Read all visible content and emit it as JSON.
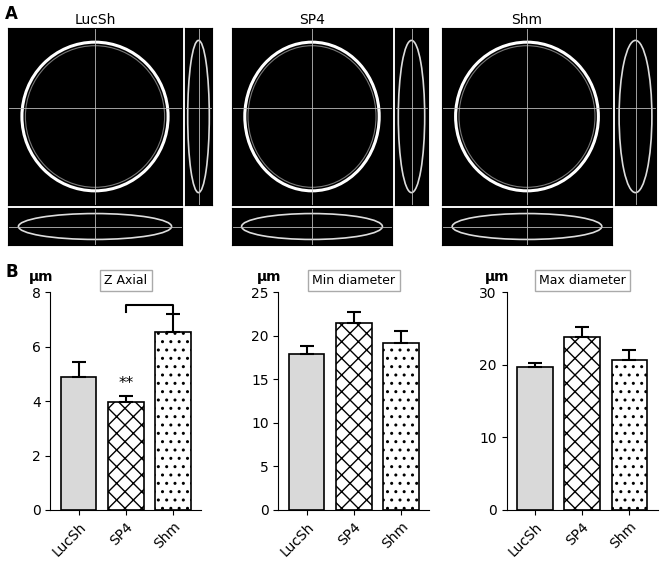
{
  "panel_labels": [
    "A",
    "B"
  ],
  "images": {
    "labels": [
      "LucSh",
      "SP4",
      "Shm"
    ]
  },
  "chart_data": [
    {
      "type": "bar",
      "title": "Z Axial",
      "y_label": "μm",
      "categories": [
        "LucSh",
        "SP4",
        "Shm"
      ],
      "values": [
        4.9,
        3.95,
        6.55
      ],
      "errors": [
        0.55,
        0.25,
        0.65
      ],
      "colors": [
        "#d9d9d9",
        "#ffffff",
        "#ffffff"
      ],
      "ylim": [
        0,
        8
      ],
      "yticks": [
        0,
        2,
        4,
        6,
        8
      ],
      "annotations": [
        {
          "text": "**",
          "category": "SP4"
        }
      ],
      "bracket": [
        "SP4",
        "Shm"
      ]
    },
    {
      "type": "bar",
      "title": "Min diameter",
      "y_label": "μm",
      "categories": [
        "LucSh",
        "SP4",
        "Shm"
      ],
      "values": [
        17.9,
        21.5,
        19.2
      ],
      "errors": [
        0.9,
        1.2,
        1.3
      ],
      "colors": [
        "#d9d9d9",
        "#ffffff",
        "#ffffff"
      ],
      "ylim": [
        0,
        25
      ],
      "yticks": [
        0,
        5,
        10,
        15,
        20,
        25
      ]
    },
    {
      "type": "bar",
      "title": "Max diameter",
      "y_label": "μm",
      "categories": [
        "LucSh",
        "SP4",
        "Shm"
      ],
      "values": [
        19.7,
        23.8,
        20.6
      ],
      "errors": [
        0.6,
        1.4,
        1.4
      ],
      "colors": [
        "#d9d9d9",
        "#ffffff",
        "#ffffff"
      ],
      "ylim": [
        0,
        30
      ],
      "yticks": [
        0,
        10,
        20,
        30
      ]
    }
  ]
}
